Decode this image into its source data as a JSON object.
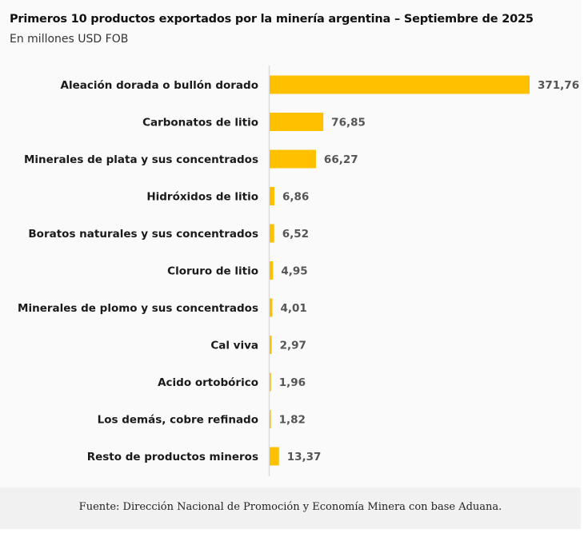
{
  "chart_data": {
    "type": "bar",
    "orientation": "horizontal",
    "title": "Primeros 10 productos exportados por la minería argentina – Septiembre de 2025",
    "subtitle": "En millones USD FOB",
    "xlabel": "",
    "ylabel": "",
    "xlim": [
      0,
      371.76
    ],
    "grid": false,
    "categories": [
      "Aleación dorada o bullón dorado",
      "Carbonatos de litio",
      "Minerales de plata y sus concentrados",
      "Hidróxidos de litio",
      "Boratos naturales y sus concentrados",
      "Cloruro de litio",
      "Minerales de plomo y sus concentrados",
      "Cal viva",
      "Acido ortobórico",
      "Los demás, cobre refinado",
      "Resto de productos mineros"
    ],
    "values": [
      371.76,
      76.85,
      66.27,
      6.86,
      6.52,
      4.95,
      4.01,
      2.97,
      1.96,
      1.82,
      13.37
    ],
    "value_labels": [
      "371,76",
      "76,85",
      "66,27",
      "6,86",
      "6,52",
      "4,95",
      "4,01",
      "2,97",
      "1,96",
      "1,82",
      "13,37"
    ],
    "bar_color": "#FFC000"
  },
  "footer": {
    "source": "Fuente: Dirección Nacional de Promoción y Economía Minera con base Aduana."
  }
}
